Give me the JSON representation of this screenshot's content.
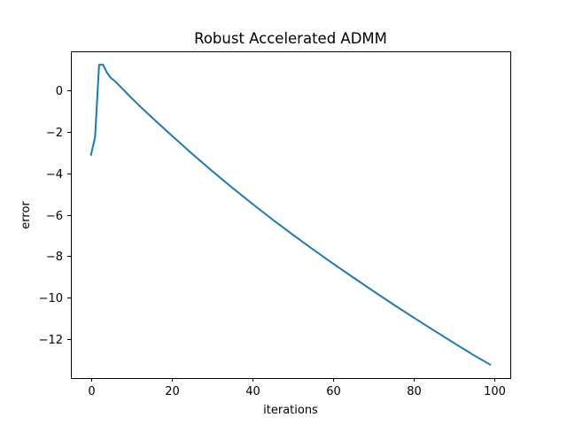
{
  "chart_data": {
    "type": "line",
    "title": "Robust Accelerated ADMM",
    "xlabel": "iterations",
    "ylabel": "error",
    "xlim": [
      -5,
      104
    ],
    "ylim": [
      -13.9,
      1.9
    ],
    "xticks": [
      0,
      20,
      40,
      60,
      80,
      100
    ],
    "yticks": [
      0,
      -2,
      -4,
      -6,
      -8,
      -10,
      -12
    ],
    "xtick_labels": [
      "0",
      "20",
      "40",
      "60",
      "80",
      "100"
    ],
    "ytick_labels": [
      "0",
      "−2",
      "−4",
      "−6",
      "−8",
      "−10",
      "−12"
    ],
    "grid": false,
    "legend": "none",
    "line_color": "#1f77b4",
    "series": [
      {
        "x": [
          0,
          1,
          2,
          3,
          4,
          5,
          6,
          7,
          8,
          9,
          10,
          12,
          15,
          20,
          25,
          30,
          35,
          40,
          45,
          50,
          55,
          60,
          65,
          70,
          75,
          80,
          85,
          90,
          95,
          99
        ],
        "values": [
          -3.1,
          -2.25,
          1.25,
          1.25,
          0.85,
          0.6,
          0.45,
          0.25,
          0.05,
          -0.15,
          -0.35,
          -0.73,
          -1.28,
          -2.17,
          -3.04,
          -3.88,
          -4.69,
          -5.47,
          -6.23,
          -6.96,
          -7.67,
          -8.36,
          -9.03,
          -9.69,
          -10.34,
          -10.97,
          -11.59,
          -12.2,
          -12.8,
          -13.25
        ]
      }
    ]
  }
}
